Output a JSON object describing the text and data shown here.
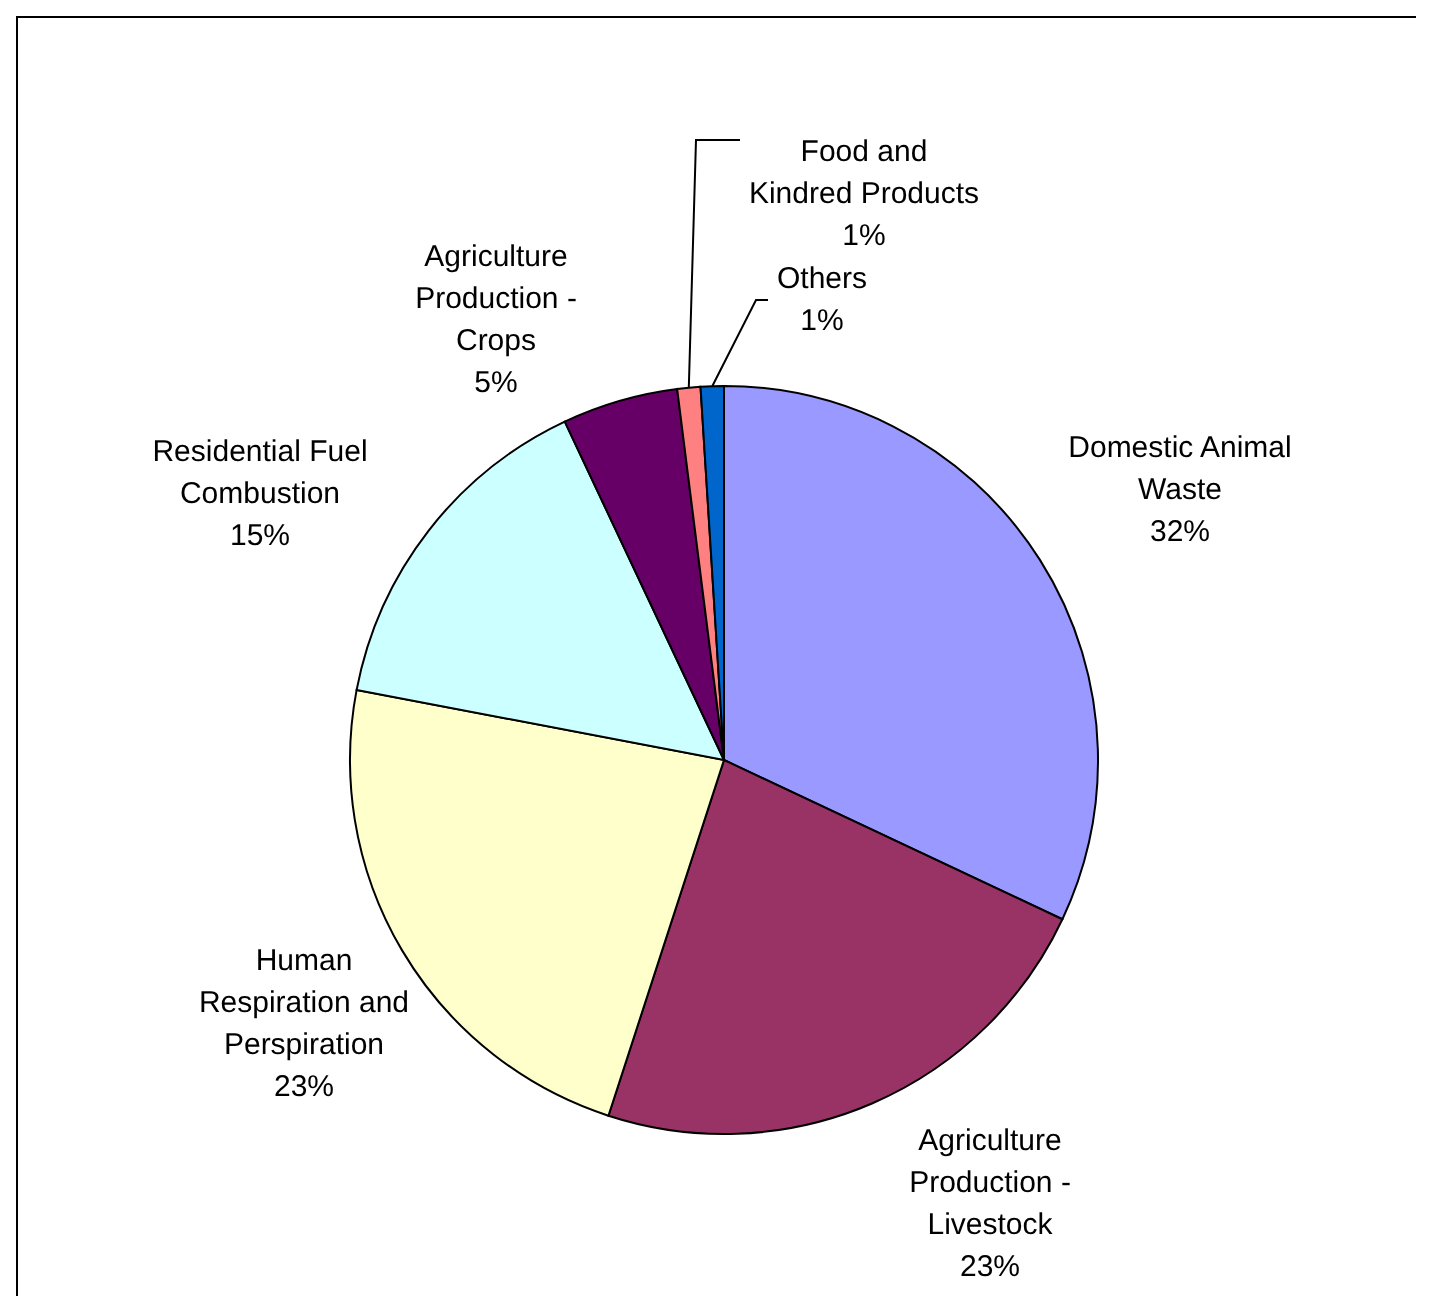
{
  "chart_data": {
    "type": "pie",
    "categories": [
      "Domestic Animal Waste",
      "Agriculture Production - Livestock",
      "Human Respiration and Perspiration",
      "Residential Fuel Combustion",
      "Agriculture Production - Crops",
      "Food and Kindred Products",
      "Others"
    ],
    "values": [
      32,
      23,
      23,
      15,
      5,
      1,
      1
    ],
    "value_labels": [
      "32%",
      "23%",
      "23%",
      "15%",
      "5%",
      "1%",
      "1%"
    ],
    "colors": [
      "#9999ff",
      "#993366",
      "#ffffcc",
      "#ccffff",
      "#660066",
      "#ff8080",
      "#0066cc"
    ],
    "legend": false
  }
}
